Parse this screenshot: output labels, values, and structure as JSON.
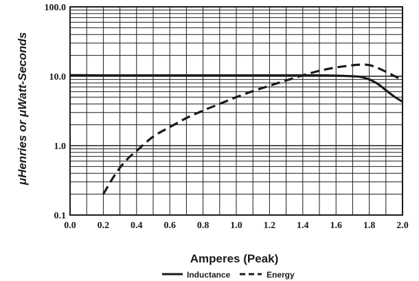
{
  "chart_data": {
    "type": "line",
    "xlabel": "Amperes (Peak)",
    "ylabel": "μHenries or  μWatt-Seconds",
    "xlim": [
      0.0,
      2.0
    ],
    "ylim": [
      0.1,
      100.0
    ],
    "yscale": "log",
    "grid": true,
    "legend_position": "bottom-center",
    "x_ticks": [
      "0.0",
      "0.2",
      "0.4",
      "0.6",
      "0.8",
      "1.0",
      "1.2",
      "1.4",
      "1.6",
      "1.8",
      "2.0"
    ],
    "y_ticks": [
      "0.1",
      "1.0",
      "10.0",
      "100.0"
    ],
    "series": [
      {
        "name": "Inductance",
        "style": "solid",
        "color": "#1a1a1a",
        "x": [
          0.0,
          0.2,
          0.4,
          0.6,
          0.8,
          1.0,
          1.2,
          1.4,
          1.5,
          1.6,
          1.7,
          1.75,
          1.8,
          1.85,
          1.9,
          1.95,
          2.0
        ],
        "y": [
          10.4,
          10.3,
          10.3,
          10.3,
          10.3,
          10.3,
          10.3,
          10.3,
          10.3,
          10.2,
          10.0,
          9.8,
          9.0,
          7.8,
          6.3,
          5.1,
          4.3
        ]
      },
      {
        "name": "Energy",
        "style": "dashed",
        "color": "#1a1a1a",
        "x": [
          0.2,
          0.25,
          0.3,
          0.35,
          0.4,
          0.5,
          0.6,
          0.7,
          0.8,
          0.9,
          1.0,
          1.1,
          1.2,
          1.3,
          1.4,
          1.5,
          1.6,
          1.7,
          1.75,
          1.8,
          1.85,
          1.9,
          1.95,
          2.0
        ],
        "y": [
          0.2,
          0.32,
          0.48,
          0.66,
          0.84,
          1.35,
          1.85,
          2.5,
          3.2,
          4.0,
          5.0,
          6.1,
          7.3,
          8.7,
          10.3,
          12.0,
          13.4,
          14.4,
          14.7,
          14.5,
          13.2,
          11.6,
          10.1,
          8.8
        ]
      }
    ]
  }
}
